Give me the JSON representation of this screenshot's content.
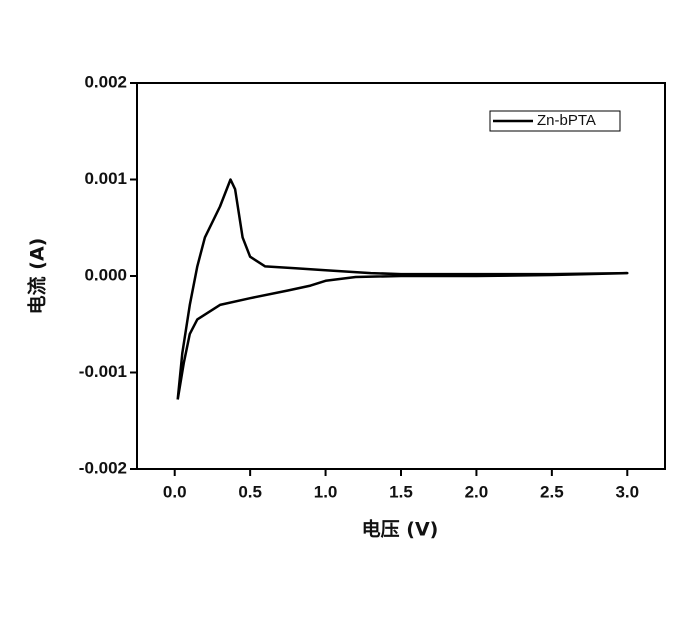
{
  "chart_data": {
    "type": "line",
    "xlabel": "电压 (V)",
    "ylabel": "电流 (A)",
    "xlim": [
      -0.25,
      3.25
    ],
    "xticks": [
      {
        "value": 0,
        "label": "0.0"
      },
      0.5,
      {
        "value": 1,
        "label": "1.0"
      },
      1.5,
      {
        "value": 2,
        "label": "2.0"
      },
      2.5,
      {
        "value": 3,
        "label": "3.0"
      }
    ],
    "ylim": [
      -0.002,
      0.002
    ],
    "yticks": [
      -0.002,
      -0.001,
      {
        "value": 0,
        "label": "0.000"
      },
      0.001,
      0.002
    ],
    "legend": "upper right",
    "series": [
      {
        "name": "Zn-bPTA",
        "color": "#000000",
        "x": [
          0.02,
          0.05,
          0.1,
          0.15,
          0.2,
          0.3,
          0.37,
          0.4,
          0.45,
          0.5,
          0.6,
          0.8,
          1.0,
          1.3,
          1.5,
          2.0,
          2.5,
          3.0,
          2.5,
          2.0,
          1.5,
          1.2,
          1.0,
          0.9,
          0.75,
          0.5,
          0.3,
          0.15,
          0.1,
          0.06,
          0.02
        ],
        "values": [
          -0.00128,
          -0.0008,
          -0.0003,
          0.0001,
          0.0004,
          0.00072,
          0.001,
          0.0009,
          0.0004,
          0.0002,
          0.0001,
          8e-05,
          6e-05,
          3e-05,
          2e-05,
          2e-05,
          2e-05,
          3e-05,
          1e-05,
          0,
          0,
          -1e-05,
          -5e-05,
          -0.0001,
          -0.00015,
          -0.00023,
          -0.0003,
          -0.00045,
          -0.0006,
          -0.0009,
          -0.00128
        ]
      }
    ]
  }
}
